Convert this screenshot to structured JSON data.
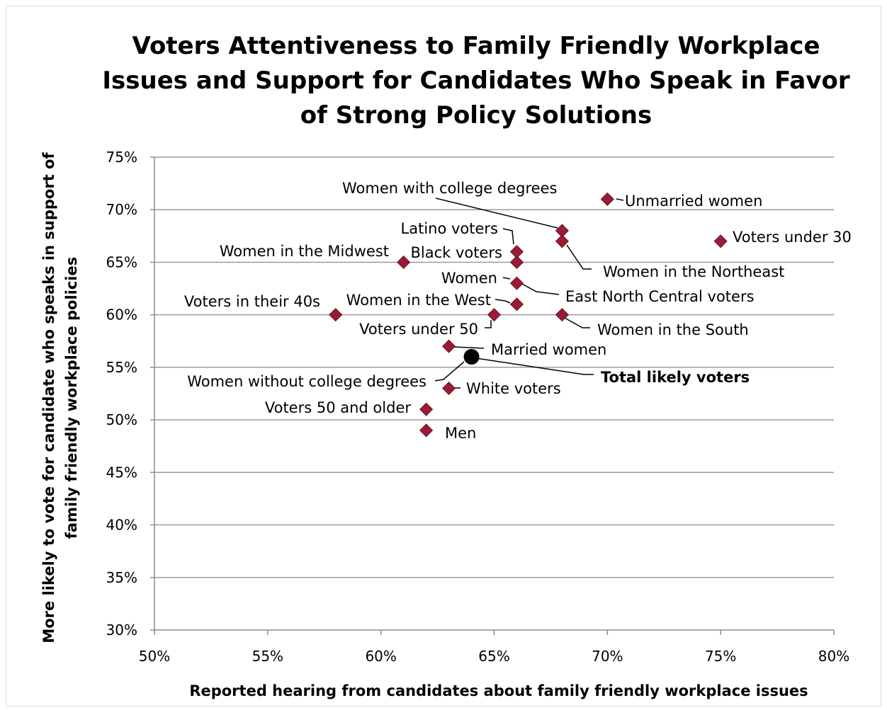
{
  "chart_data": {
    "type": "scatter",
    "title": [
      "Voters Attentiveness to Family Friendly Workplace",
      "Issues and Support for Candidates Who Speak in Favor",
      "of Strong Policy Solutions"
    ],
    "xlabel": "Reported hearing from candidates about family friendly workplace issues",
    "ylabel": [
      "More likely to vote for candidate who speaks in support of",
      "family friendly workplace  policies"
    ],
    "xlim": [
      50,
      80
    ],
    "ylim": [
      30,
      75
    ],
    "x_ticks": [
      50,
      55,
      60,
      65,
      70,
      75,
      80
    ],
    "y_ticks": [
      30,
      35,
      40,
      45,
      50,
      55,
      60,
      65,
      70,
      75
    ],
    "x_tick_labels": [
      "50%",
      "55%",
      "60%",
      "65%",
      "70%",
      "75%",
      "80%"
    ],
    "y_tick_labels": [
      "30%",
      "35%",
      "40%",
      "45%",
      "50%",
      "55%",
      "60%",
      "65%",
      "70%",
      "75%"
    ],
    "grid": "horizontal",
    "marker_color": "#9b1b35",
    "highlight_color": "#000000",
    "points": [
      {
        "label": "Unmarried women",
        "x": 70,
        "y": 71
      },
      {
        "label": "Women with college degrees",
        "x": 68,
        "y": 68
      },
      {
        "label": "Voters under 30",
        "x": 75,
        "y": 67
      },
      {
        "label": "Women in the Northeast",
        "x": 68,
        "y": 67
      },
      {
        "label": "Latino voters",
        "x": 66,
        "y": 66
      },
      {
        "label": "Women in the Midwest",
        "x": 61,
        "y": 65
      },
      {
        "label": "Black voters",
        "x": 66,
        "y": 65
      },
      {
        "label": "Women",
        "x": 66,
        "y": 63
      },
      {
        "label": "East North Central voters",
        "x": 66,
        "y": 63
      },
      {
        "label": "Women in the West",
        "x": 66,
        "y": 61
      },
      {
        "label": "Voters in their 40s",
        "x": 58,
        "y": 60
      },
      {
        "label": "Voters under 50",
        "x": 65,
        "y": 60
      },
      {
        "label": "Women in the South",
        "x": 68,
        "y": 60
      },
      {
        "label": "Married women",
        "x": 63,
        "y": 57
      },
      {
        "label": "Total likely voters",
        "x": 64,
        "y": 56,
        "highlight": true
      },
      {
        "label": "Women without college degrees",
        "x": 64,
        "y": 56,
        "highlight": true,
        "hide_marker": true
      },
      {
        "label": "White voters",
        "x": 63,
        "y": 53
      },
      {
        "label": "Voters 50 and older",
        "x": 62,
        "y": 51
      },
      {
        "label": "Men",
        "x": 62,
        "y": 49
      }
    ]
  }
}
